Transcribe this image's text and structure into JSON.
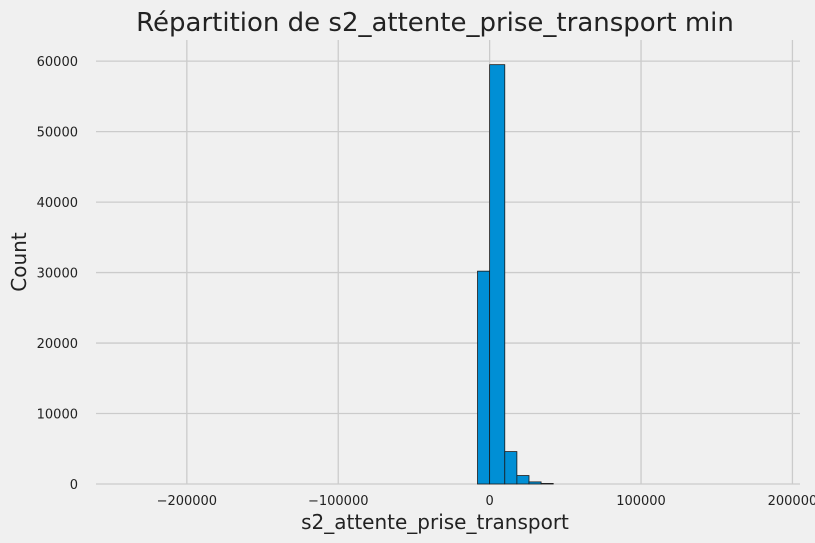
{
  "chart_data": {
    "type": "bar",
    "title": "Répartition de s2_attente_prise_transport min",
    "xlabel": "s2_attente_prise_transport",
    "ylabel": "Count",
    "xlim": [
      -260000,
      205000
    ],
    "ylim": [
      0,
      63000
    ],
    "x_ticks": [
      -200000,
      -100000,
      0,
      100000,
      200000
    ],
    "x_tick_labels": [
      "−200000",
      "−100000",
      "0",
      "100000",
      "200000"
    ],
    "y_ticks": [
      0,
      10000,
      20000,
      30000,
      40000,
      50000,
      60000
    ],
    "y_tick_labels": [
      "0",
      "10000",
      "20000",
      "30000",
      "40000",
      "50000",
      "60000"
    ],
    "grid": true,
    "bar_color": "#008fd5",
    "bins": [
      {
        "x0": -8000,
        "x1": 0,
        "count": 30200
      },
      {
        "x0": 0,
        "x1": 10000,
        "count": 59500
      },
      {
        "x0": 10000,
        "x1": 18000,
        "count": 4600
      },
      {
        "x0": 18000,
        "x1": 26000,
        "count": 1200
      },
      {
        "x0": 26000,
        "x1": 34000,
        "count": 300
      },
      {
        "x0": 34000,
        "x1": 42000,
        "count": 80
      }
    ]
  }
}
